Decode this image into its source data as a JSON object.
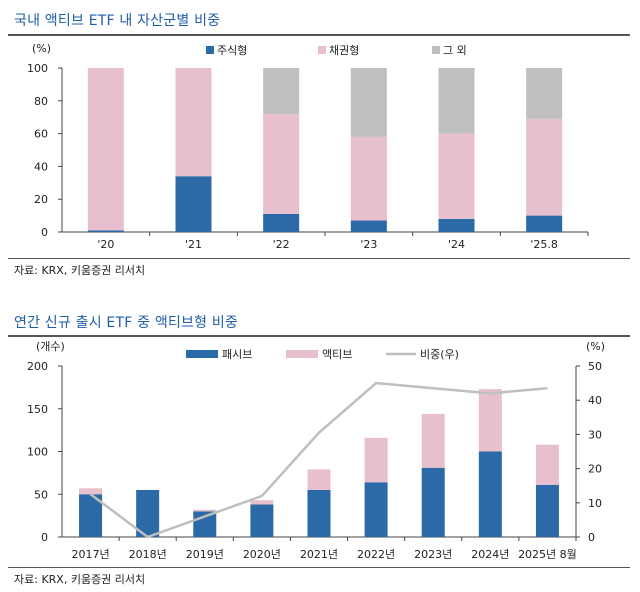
{
  "chart1": {
    "title": "국내 액티브 ETF 내 자산군별 비중",
    "source": "자료: KRX, 키움증권 리서치",
    "colors": {
      "equity": "#2b6aa7",
      "bond": "#e8bfcc",
      "other": "#bfbfbf"
    },
    "chart_data": {
      "type": "bar",
      "stacked": true,
      "y_unit_label": "(%)",
      "categories": [
        "'20",
        "'21",
        "'22",
        "'23",
        "'24",
        "'25.8"
      ],
      "series": [
        {
          "name": "주식형",
          "values": [
            1,
            34,
            11,
            7,
            8,
            10
          ]
        },
        {
          "name": "채권형",
          "values": [
            99,
            66,
            61,
            51,
            52,
            59
          ]
        },
        {
          "name": "그 외",
          "values": [
            0,
            0,
            28,
            42,
            40,
            31
          ]
        }
      ],
      "ylim": [
        0,
        100
      ],
      "yticks": [
        0,
        20,
        40,
        60,
        80,
        100
      ],
      "legend": "top"
    }
  },
  "chart2": {
    "title": "연간 신규 출시 ETF 중 액티브형 비중",
    "source": "자료: KRX, 키움증권 리서치",
    "colors": {
      "passive": "#2b6aa7",
      "active": "#e8bfcc",
      "ratio": "#bfbfbf"
    },
    "chart_data": {
      "type": "bar",
      "stacked": true,
      "y_left_unit_label": "(개수)",
      "y_right_unit_label": "(%)",
      "categories": [
        "2017년",
        "2018년",
        "2019년",
        "2020년",
        "2021년",
        "2022년",
        "2023년",
        "2024년",
        "2025년 8월"
      ],
      "series": [
        {
          "name": "패시브",
          "axis": "left",
          "values": [
            50,
            55,
            30,
            38,
            55,
            64,
            81,
            100,
            61
          ]
        },
        {
          "name": "액티브",
          "axis": "left",
          "values": [
            7,
            0,
            2,
            5,
            24,
            52,
            63,
            73,
            47
          ]
        },
        {
          "name": "비중(우)",
          "axis": "right",
          "type": "line",
          "values": [
            12.5,
            0,
            6,
            12,
            30.5,
            45,
            43.5,
            42,
            43.5
          ]
        }
      ],
      "ylim_left": [
        0,
        200
      ],
      "yticks_left": [
        0,
        50,
        100,
        150,
        200
      ],
      "ylim_right": [
        0,
        50
      ],
      "yticks_right": [
        0,
        10,
        20,
        30,
        40,
        50
      ],
      "legend": "top"
    }
  }
}
